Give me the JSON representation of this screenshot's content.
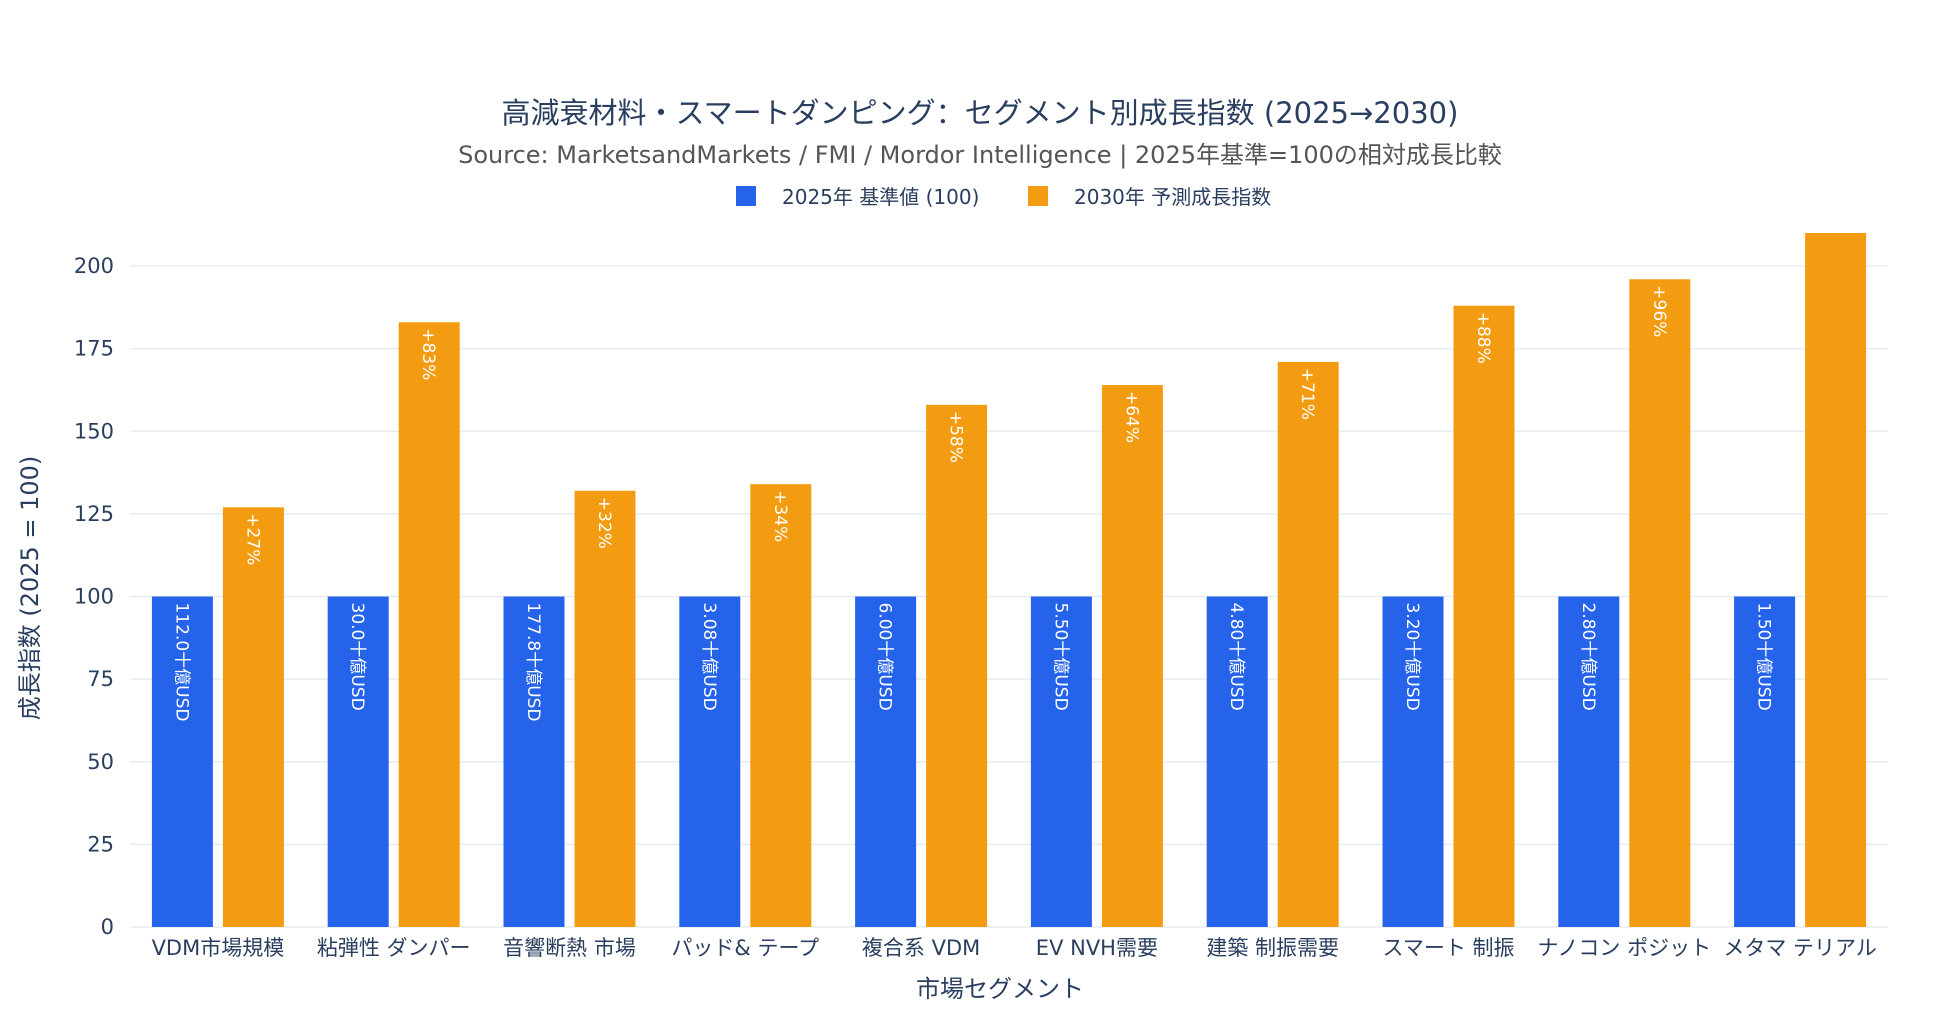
{
  "colors": {
    "base": "#2563eb",
    "forecast": "#f39c12",
    "grid": "#e8ebf0",
    "text": "#2a3f5f"
  },
  "chart_data": {
    "type": "bar",
    "title": "高減衰材料・スマートダンピング：セグメント別成長指数 (2025→2030)",
    "subtitle": "Source: MarketsandMarkets / FMI / Mordor Intelligence | 2025年基準=100の相対成長比較",
    "xlabel": "市場セグメント",
    "ylabel": "成長指数 (2025 = 100)",
    "ylim": [
      0,
      210
    ],
    "yticks": [
      0,
      25,
      50,
      75,
      100,
      125,
      150,
      175,
      200
    ],
    "legend_position": "top-center",
    "grid": true,
    "categories": [
      "VDM市場規模",
      "粘弾性 ダンパー",
      "音響断熱 市場",
      "パッド& テープ",
      "複合系 VDM",
      "EV NVH需要",
      "建築 制振需要",
      "スマート 制振",
      "ナノコン ポジット",
      "メタマ テリアル"
    ],
    "series": [
      {
        "name": "2025年 基準値 (100)",
        "color": "#2563eb",
        "values": [
          100,
          100,
          100,
          100,
          100,
          100,
          100,
          100,
          100,
          100
        ],
        "labels": [
          "112.0十億USD",
          "30.0十億USD",
          "177.8十億USD",
          "3.08十億USD",
          "6.00十億USD",
          "5.50十億USD",
          "4.80十億USD",
          "3.20十億USD",
          "2.80十億USD",
          "1.50十億USD"
        ]
      },
      {
        "name": "2030年 予測成長指数",
        "color": "#f39c12",
        "values": [
          127,
          183,
          132,
          134,
          158,
          164,
          171,
          188,
          196,
          210
        ],
        "labels": [
          "+27%",
          "+83%",
          "+32%",
          "+34%",
          "+58%",
          "+64%",
          "+71%",
          "+88%",
          "+96%",
          ""
        ]
      }
    ]
  }
}
